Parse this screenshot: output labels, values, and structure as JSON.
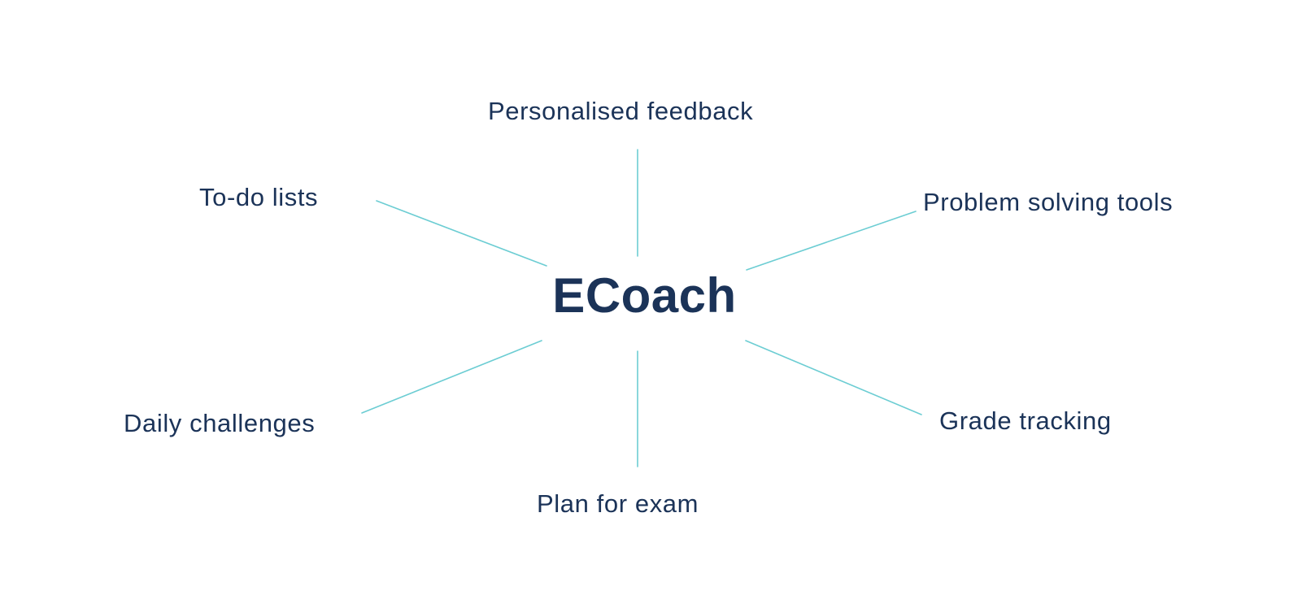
{
  "diagram": {
    "center": "ECoach",
    "nodes": {
      "top": "Personalised feedback",
      "top_left": "To-do lists",
      "top_right": "Problem solving tools",
      "bottom_left": "Daily challenges",
      "bottom_right": "Grade tracking",
      "bottom": "Plan for exam"
    },
    "colors": {
      "text": "#1b3358",
      "connector": "#6ccdd3",
      "background": "#ffffff"
    }
  }
}
